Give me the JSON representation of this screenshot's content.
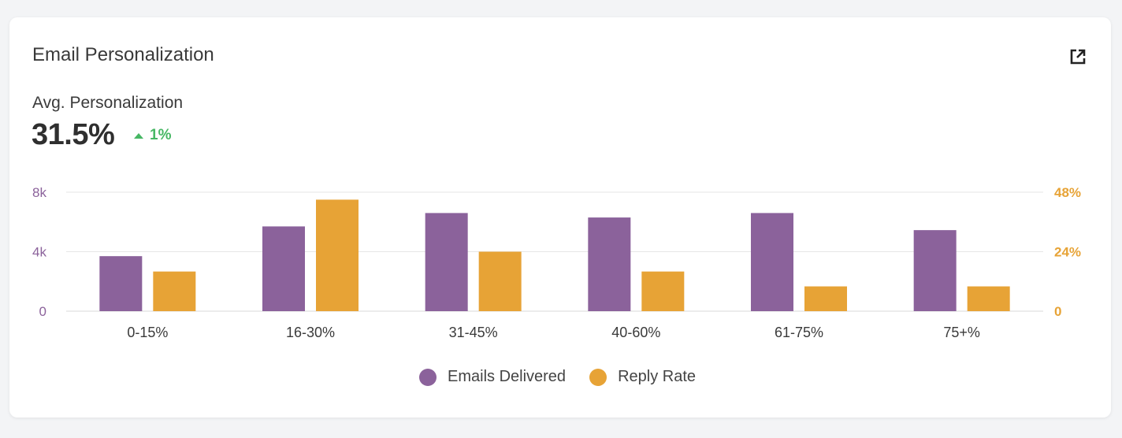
{
  "card": {
    "title": "Email Personalization"
  },
  "metric": {
    "label": "Avg. Personalization",
    "value": "31.5%",
    "change": "1%",
    "change_direction": "up",
    "change_color": "#47b764"
  },
  "icons": {
    "open_external": "external-link-icon"
  },
  "chart_data": {
    "type": "bar",
    "categories": [
      "0-15%",
      "16-30%",
      "31-45%",
      "40-60%",
      "61-75%",
      "75+%"
    ],
    "series": [
      {
        "name": "Emails Delivered",
        "axis": "left",
        "color": "#8b629b",
        "values": [
          3700,
          5700,
          6600,
          6300,
          6600,
          5450
        ]
      },
      {
        "name": "Reply Rate",
        "axis": "right",
        "color": "#e7a336",
        "values": [
          16,
          45,
          24,
          16,
          10,
          10
        ]
      }
    ],
    "y_left": {
      "ylim": [
        0,
        8000
      ],
      "ticks": [
        "0",
        "4k",
        "8k"
      ],
      "color": "#8b629b"
    },
    "y_right": {
      "ylim": [
        0,
        48
      ],
      "ticks": [
        "0",
        "24%",
        "48%"
      ],
      "color": "#e7a336"
    },
    "grid": true,
    "legend": "bottom-center"
  }
}
